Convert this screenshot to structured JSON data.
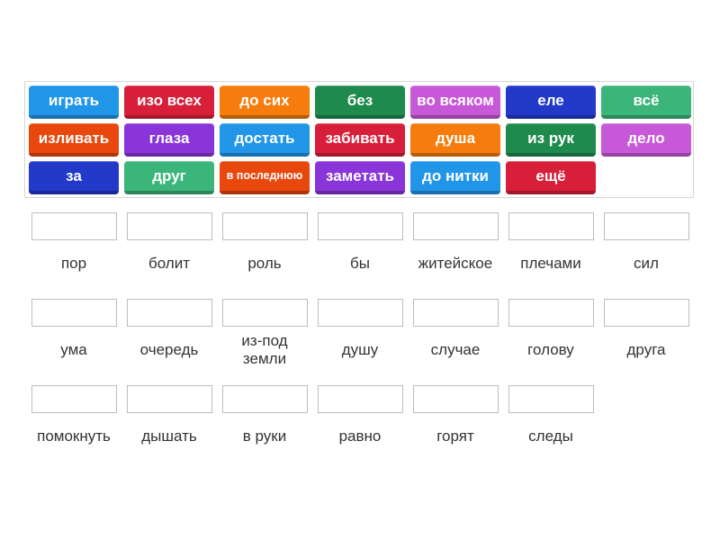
{
  "tiles": [
    {
      "text": "играть",
      "color": "#2196e8"
    },
    {
      "text": "изо всех",
      "color": "#d81f3a"
    },
    {
      "text": "до сих",
      "color": "#f57c0d"
    },
    {
      "text": "без",
      "color": "#1e8a4c"
    },
    {
      "text": "во всяком",
      "color": "#c758d8"
    },
    {
      "text": "еле",
      "color": "#2339c9"
    },
    {
      "text": "всё",
      "color": "#3bb57a"
    },
    {
      "text": "изливать",
      "color": "#e8470e"
    },
    {
      "text": "глаза",
      "color": "#8a35d9"
    },
    {
      "text": "достать",
      "color": "#2196e8"
    },
    {
      "text": "забивать",
      "color": "#d81f3a"
    },
    {
      "text": "душа",
      "color": "#f57c0d"
    },
    {
      "text": "из рук",
      "color": "#1e8a4c"
    },
    {
      "text": "дело",
      "color": "#c758d8"
    },
    {
      "text": "за",
      "color": "#2339c9"
    },
    {
      "text": "друг",
      "color": "#3bb57a"
    },
    {
      "text": "в последнюю",
      "color": "#e8470e"
    },
    {
      "text": "заметать",
      "color": "#8a35d9"
    },
    {
      "text": "до нитки",
      "color": "#2196e8"
    },
    {
      "text": "ещё",
      "color": "#d81f3a"
    }
  ],
  "slots": [
    "пор",
    "болит",
    "роль",
    "бы",
    "житейское",
    "плечами",
    "сил",
    "ума",
    "очередь",
    "из-под земли",
    "душу",
    "случае",
    "голову",
    "друга",
    "помокнуть",
    "дышать",
    "в руки",
    "равно",
    "горят",
    "следы"
  ]
}
